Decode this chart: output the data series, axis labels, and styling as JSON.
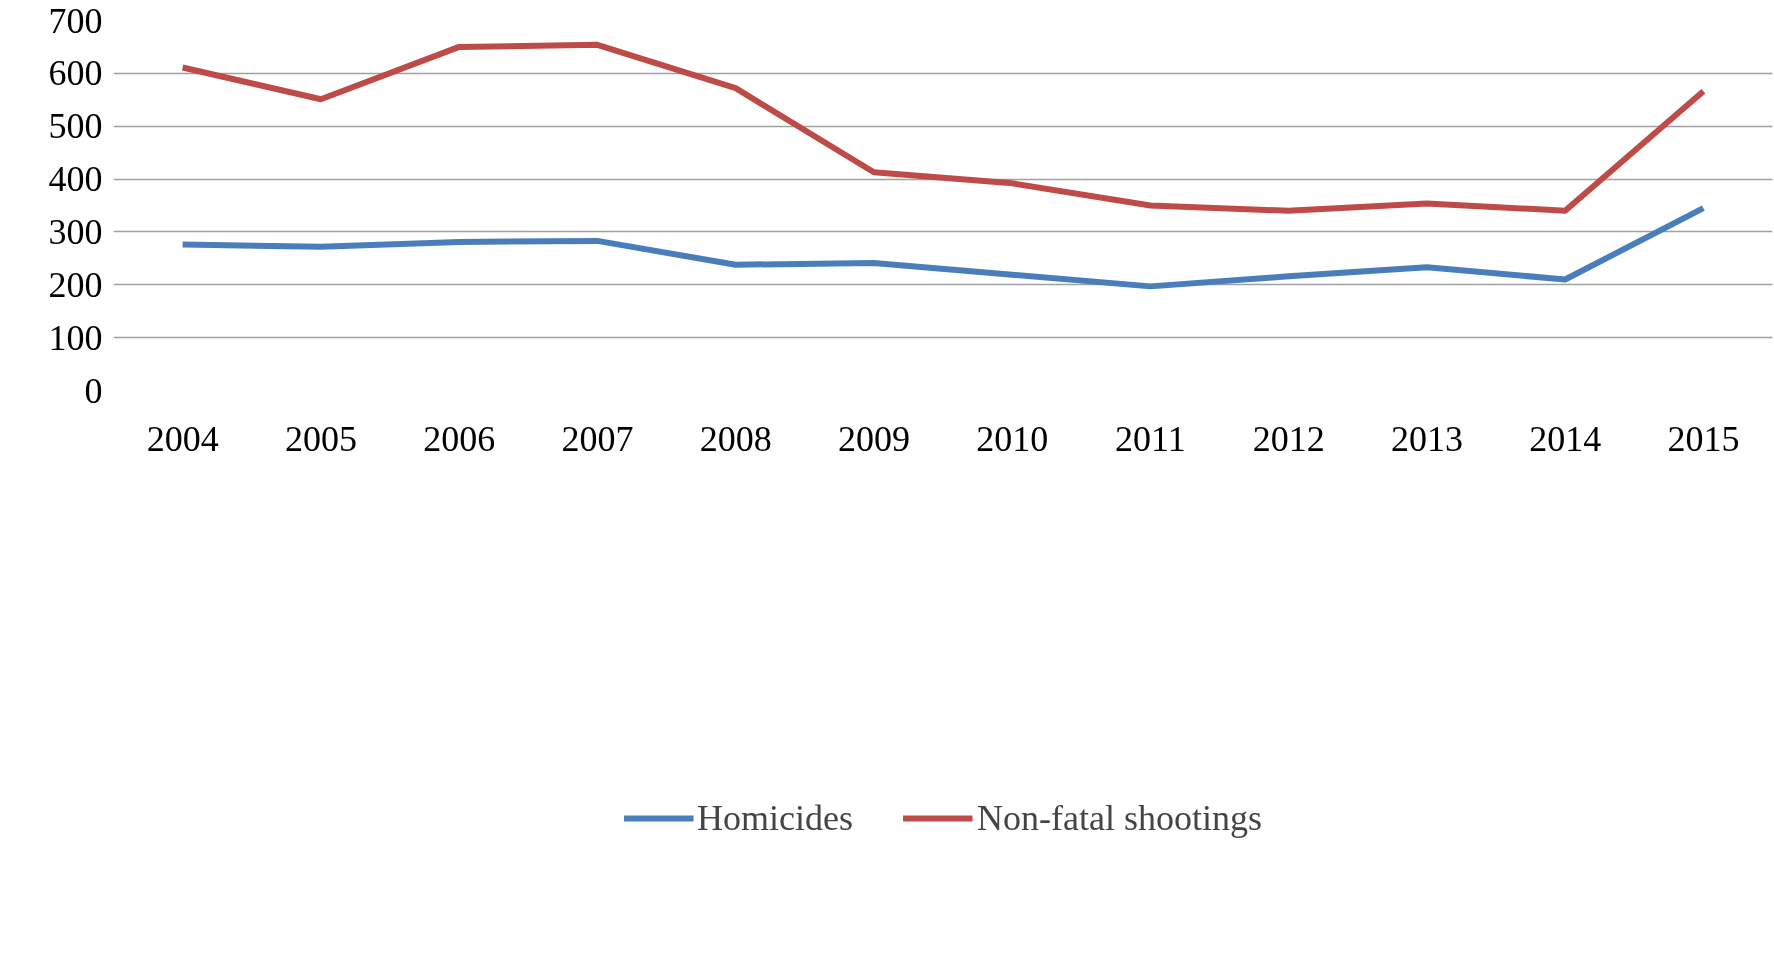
{
  "chart_data": {
    "type": "line",
    "categories": [
      "2004",
      "2005",
      "2006",
      "2007",
      "2008",
      "2009",
      "2010",
      "2011",
      "2012",
      "2013",
      "2014",
      "2015"
    ],
    "series": [
      {
        "name": "Homicides",
        "color": "#4a7ebb",
        "values": [
          276,
          272,
          281,
          283,
          238,
          241,
          219,
          197,
          216,
          233,
          210,
          345
        ]
      },
      {
        "name": "Non-fatal shootings",
        "color": "#be4b48",
        "values": [
          611,
          551,
          650,
          654,
          572,
          413,
          392,
          350,
          340,
          354,
          340,
          566
        ]
      }
    ],
    "ylim": [
      0,
      700
    ],
    "yticks": [
      0,
      100,
      200,
      300,
      400,
      500,
      600,
      700
    ],
    "grid": "y",
    "legend": "bottom",
    "marker": "none",
    "line_style": "solid"
  }
}
